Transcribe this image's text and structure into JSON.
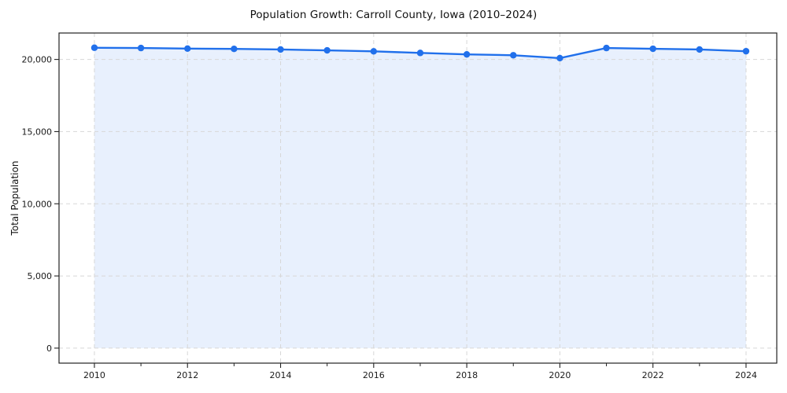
{
  "title": "Population Growth: Carroll County, Iowa (2010–2024)",
  "chart_data": {
    "type": "area",
    "x": [
      2010,
      2011,
      2012,
      2013,
      2014,
      2015,
      2016,
      2017,
      2018,
      2019,
      2020,
      2021,
      2022,
      2023,
      2024
    ],
    "series": [
      {
        "name": "Total Population",
        "values": [
          20810,
          20790,
          20750,
          20730,
          20690,
          20630,
          20560,
          20450,
          20350,
          20290,
          20090,
          20790,
          20740,
          20690,
          20570
        ]
      }
    ],
    "title": "Population Growth: Carroll County, Iowa (2010–2024)",
    "xlabel": "",
    "ylabel": "Total Population",
    "xlim": [
      2009.24,
      2024.66
    ],
    "ylim": [
      -1040,
      21830
    ],
    "xticks_labeled": [
      2010,
      2012,
      2014,
      2016,
      2018,
      2020,
      2022,
      2024
    ],
    "xticks_minor": [
      2011,
      2013,
      2015,
      2017,
      2019,
      2021,
      2023
    ],
    "yticks": [
      0,
      5000,
      10000,
      15000,
      20000
    ],
    "ytick_labels": [
      "0",
      "5,000",
      "10,000",
      "15,000",
      "20,000"
    ],
    "xtick_labels": [
      "2010",
      "2012",
      "2014",
      "2016",
      "2018",
      "2020",
      "2022",
      "2024"
    ],
    "grid": true,
    "grid_style": "dashed",
    "legend": "none",
    "marker": "circle",
    "fill_to_zero": true,
    "colors": {
      "line": "#2170eb",
      "fill": "#2170eb",
      "fill_opacity": "0.10",
      "grid": "#d7d7d7",
      "spine": "#222222",
      "tick_label": "#1a1a1a",
      "background": "#ffffff"
    }
  }
}
